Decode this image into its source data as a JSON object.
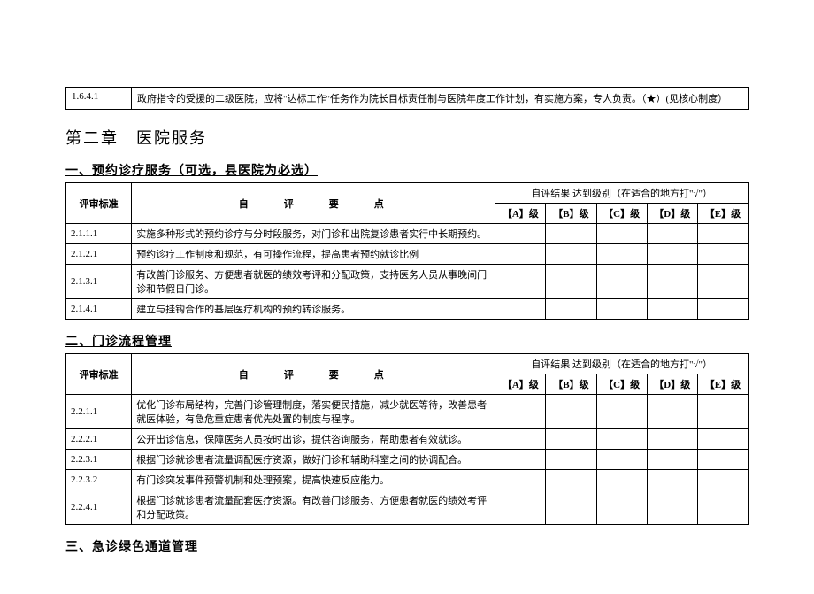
{
  "top_row": {
    "code": "1.6.4.1",
    "desc": "政府指令的受援的二级医院，应将\"达标工作\"任务作为院长目标责任制与医院年度工作计划，有实施方案，专人负责。（★）(见核心制度）"
  },
  "chapter_title": "第二章　医院服务",
  "sections": [
    {
      "title": "一、预约诊疗服务（可选，县医院为必选）",
      "header": {
        "std": "评审标准",
        "criteria": "自评要点",
        "result": "自评结果 达到级别（在适合的地方打\"√\"）",
        "grades": [
          "【A】级",
          "【B】级",
          "【C】级",
          "【D】级",
          "【E】级"
        ]
      },
      "rows": [
        {
          "code": "2.1.1.1",
          "desc": "实施多种形式的预约诊疗与分时段服务，对门诊和出院复诊患者实行中长期预约。"
        },
        {
          "code": "2.1.2.1",
          "desc": "预约诊疗工作制度和规范，有可操作流程，提高患者预约就诊比例"
        },
        {
          "code": "2.1.3.1",
          "desc": "有改善门诊服务、方便患者就医的绩效考评和分配政策，支持医务人员从事晚间门诊和节假日门诊。"
        },
        {
          "code": "2.1.4.1",
          "desc": "建立与挂钩合作的基层医疗机构的预约转诊服务。"
        }
      ]
    },
    {
      "title": "二、门诊流程管理",
      "header": {
        "std": "评审标准",
        "criteria": "自评要点",
        "result": "自评结果 达到级别（在适合的地方打\"√\"）",
        "grades": [
          "【A】级",
          "【B】级",
          "【C】级",
          "【D】级",
          "【E】级"
        ]
      },
      "rows": [
        {
          "code": "2.2.1.1",
          "desc": "优化门诊布局结构，完善门诊管理制度，落实便民措施，减少就医等待，改善患者就医体验，有急危重症患者优先处置的制度与程序。"
        },
        {
          "code": "2.2.2.1",
          "desc": "公开出诊信息，保障医务人员按时出诊，提供咨询服务，帮助患者有效就诊。"
        },
        {
          "code": "2.2.3.1",
          "desc": "根据门诊就诊患者流量调配医疗资源，做好门诊和辅助科室之间的协调配合。"
        },
        {
          "code": "2.2.3.2",
          "desc": "有门诊突发事件预警机制和处理预案，提高快速反应能力。"
        },
        {
          "code": "2.2.4.1",
          "desc": "根据门诊就诊患者流量配套医疗资源。有改善门诊服务、方便患者就医的绩效考评和分配政策。"
        }
      ]
    }
  ],
  "section3_title": "三、急诊绿色通道管理",
  "colors": {
    "border": "#000000",
    "text": "#000000",
    "background": "#ffffff"
  },
  "fontsize": {
    "body": 12,
    "chapter": 18,
    "section": 14,
    "table": 11
  }
}
